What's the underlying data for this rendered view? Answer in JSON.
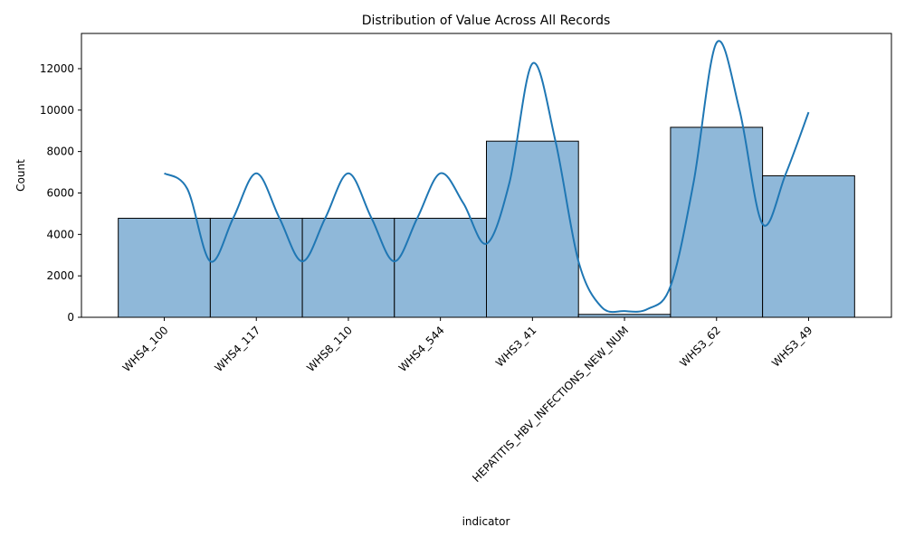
{
  "chart_data": {
    "type": "bar",
    "title": "Distribution of Value Across All Records",
    "xlabel": "indicator",
    "ylabel": "Count",
    "categories": [
      "WHS4_100",
      "WHS4_117",
      "WHS8_110",
      "WHS4_544",
      "WHS3_41",
      "HEPATITIS_HBV_INFECTIONS_NEW_NUM",
      "WHS3_62",
      "WHS3_49"
    ],
    "values": [
      4780,
      4780,
      4780,
      4780,
      8500,
      140,
      9170,
      6830
    ],
    "ylim": [
      0,
      13700
    ],
    "yticks": [
      0,
      2000,
      4000,
      6000,
      8000,
      10000,
      12000
    ],
    "kde": {
      "x": [
        0.0,
        0.25,
        0.5,
        0.75,
        1.0,
        1.25,
        1.5,
        1.75,
        2.0,
        2.25,
        2.5,
        2.75,
        3.0,
        3.25,
        3.5,
        3.75,
        4.0,
        4.25,
        4.5,
        4.75,
        5.0,
        5.25,
        5.5,
        5.75,
        6.0,
        6.25,
        6.5,
        6.75,
        7.0
      ],
      "y": [
        6950,
        6200,
        2700,
        4800,
        6950,
        4800,
        2700,
        4800,
        6950,
        4800,
        2700,
        4800,
        6950,
        5500,
        3550,
        6500,
        12250,
        8500,
        2700,
        500,
        300,
        400,
        1500,
        6500,
        13250,
        10000,
        4500,
        6900,
        9900
      ]
    },
    "colors": {
      "bar_fill": "#8fb8d9",
      "bar_edge": "#000000",
      "kde_line": "#1f77b4"
    },
    "grid": false,
    "legend": "none"
  }
}
